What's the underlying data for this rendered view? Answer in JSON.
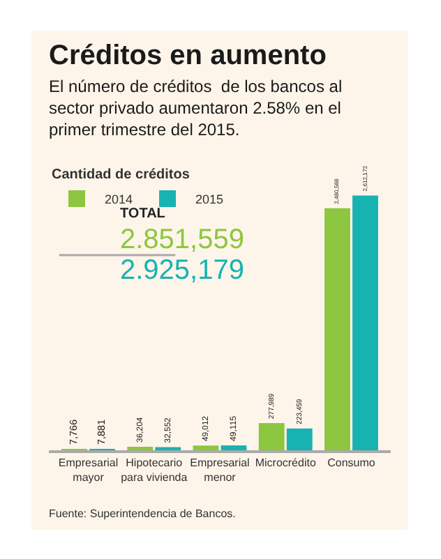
{
  "chart_data": {
    "type": "bar",
    "title": "Créditos en aumento",
    "subtitle": "El número de créditos  de los bancos al sector privado aumentaron 2.58% en el primer trimestre del 2015.",
    "legend_title": "Cantidad de créditos",
    "legend": "top left",
    "grid": false,
    "categories": [
      "Empresarial mayor",
      "Hipotecario para vivienda",
      "Empresarial menor",
      "Microcrédito",
      "Consumo"
    ],
    "series": [
      {
        "name": "2014",
        "color": "#8dc63f",
        "values": [
          7766,
          36204,
          49012,
          277989,
          2480588
        ],
        "value_labels": [
          "7,766",
          "36,204",
          "49,012",
          "277,989",
          "2,480,588"
        ]
      },
      {
        "name": "2015",
        "color": "#17b3b0",
        "values": [
          7881,
          32552,
          49115,
          223459,
          2612172
        ],
        "value_labels": [
          "7,881",
          "32,552",
          "49,115",
          "223,459",
          "2,612,172"
        ]
      }
    ],
    "annotations": [
      "TOTAL",
      "2.851,559",
      "2.925,179",
      "Fuente: Superintendencia de Bancos."
    ]
  }
}
